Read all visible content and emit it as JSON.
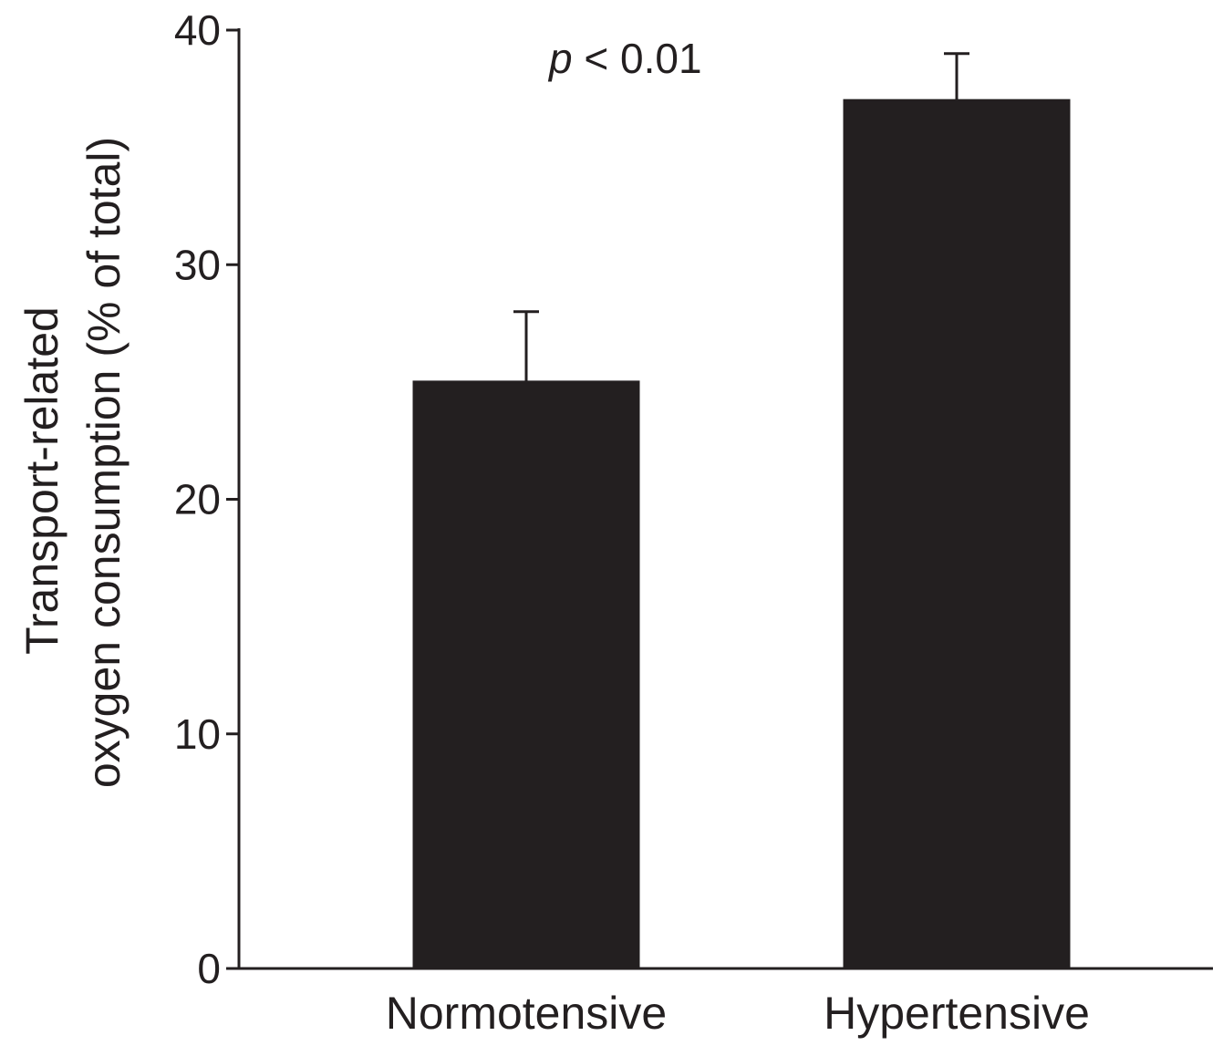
{
  "chart_data": {
    "type": "bar",
    "categories": [
      "Normotensive",
      "Hypertensive"
    ],
    "values": [
      25,
      37
    ],
    "error_upper": [
      28,
      39
    ],
    "ylabel_lines": [
      "Transport-related",
      "oxygen consumption (% of total)"
    ],
    "xlabel": "",
    "ylim": [
      0,
      40
    ],
    "yticks": [
      0,
      10,
      20,
      30,
      40
    ],
    "ytick_labels": [
      "0",
      "10",
      "20",
      "30",
      "40"
    ],
    "annotation": {
      "italic": "p",
      "text": " < 0.01"
    },
    "grid": false,
    "legend": "none",
    "bar_color": "#231f20",
    "axis_color": "#231f20"
  }
}
